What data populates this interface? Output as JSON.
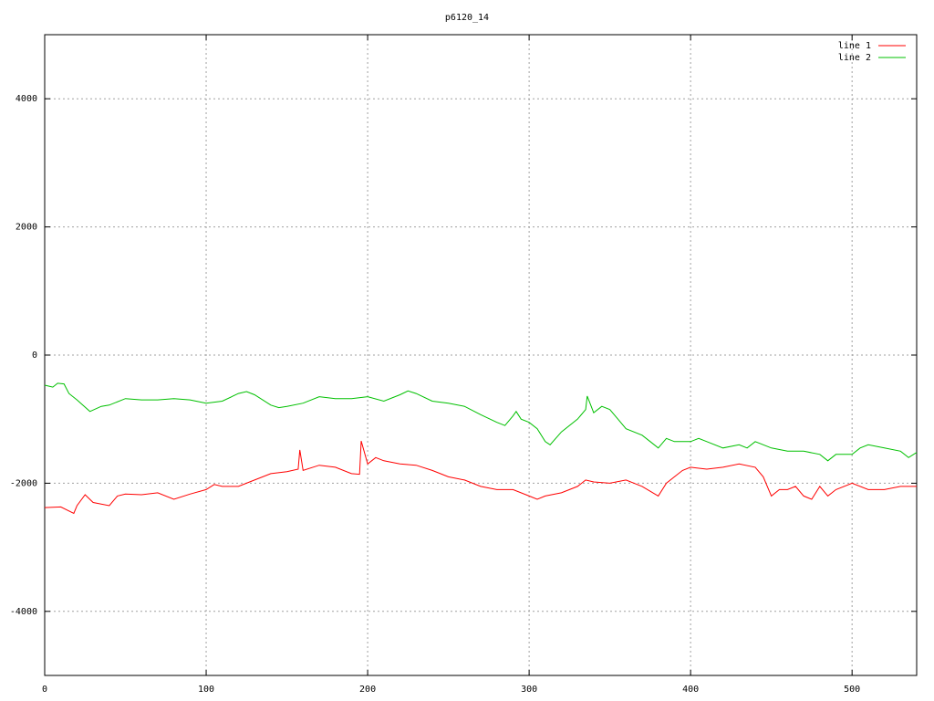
{
  "chart_data": {
    "type": "line",
    "title": "p6120_14",
    "xlim": [
      0,
      540
    ],
    "ylim": [
      -5000,
      5000
    ],
    "xticks": [
      0,
      100,
      200,
      300,
      400,
      500
    ],
    "yticks": [
      -4000,
      -2000,
      0,
      2000,
      4000
    ],
    "grid": true,
    "legend": "top-right",
    "series": [
      {
        "name": "line 1",
        "color": "#ff0000",
        "x": [
          0,
          10,
          18,
          20,
          25,
          30,
          40,
          45,
          50,
          60,
          70,
          80,
          90,
          100,
          105,
          110,
          120,
          130,
          140,
          150,
          157,
          158,
          160,
          170,
          180,
          190,
          195,
          196,
          200,
          205,
          210,
          220,
          230,
          240,
          250,
          260,
          270,
          280,
          290,
          300,
          305,
          310,
          320,
          330,
          335,
          340,
          350,
          360,
          370,
          380,
          385,
          390,
          395,
          400,
          410,
          420,
          430,
          440,
          445,
          450,
          455,
          460,
          465,
          470,
          475,
          480,
          485,
          490,
          500,
          510,
          520,
          530,
          540
        ],
        "values": [
          -2380,
          -2370,
          -2470,
          -2350,
          -2180,
          -2300,
          -2350,
          -2200,
          -2170,
          -2180,
          -2150,
          -2250,
          -2170,
          -2100,
          -2020,
          -2050,
          -2050,
          -1950,
          -1850,
          -1820,
          -1780,
          -1480,
          -1800,
          -1720,
          -1750,
          -1850,
          -1860,
          -1340,
          -1700,
          -1600,
          -1650,
          -1700,
          -1720,
          -1800,
          -1900,
          -1950,
          -2050,
          -2100,
          -2100,
          -2200,
          -2250,
          -2200,
          -2150,
          -2050,
          -1950,
          -1980,
          -2000,
          -1950,
          -2050,
          -2200,
          -2000,
          -1900,
          -1800,
          -1750,
          -1780,
          -1750,
          -1700,
          -1750,
          -1900,
          -2200,
          -2100,
          -2100,
          -2050,
          -2200,
          -2250,
          -2050,
          -2200,
          -2100,
          -2000,
          -2100,
          -2100,
          -2050,
          -2050
        ]
      },
      {
        "name": "line 2",
        "color": "#00c000",
        "x": [
          0,
          5,
          8,
          12,
          15,
          20,
          28,
          35,
          40,
          50,
          60,
          70,
          80,
          90,
          100,
          110,
          120,
          125,
          130,
          140,
          145,
          150,
          160,
          170,
          180,
          190,
          200,
          210,
          220,
          225,
          230,
          240,
          250,
          260,
          270,
          280,
          285,
          290,
          292,
          295,
          300,
          305,
          310,
          313,
          320,
          330,
          335,
          336,
          340,
          345,
          350,
          355,
          360,
          370,
          375,
          380,
          385,
          390,
          400,
          405,
          410,
          420,
          430,
          435,
          440,
          450,
          460,
          470,
          480,
          485,
          490,
          500,
          505,
          510,
          520,
          530,
          535,
          540
        ],
        "values": [
          -470,
          -500,
          -440,
          -450,
          -600,
          -700,
          -880,
          -800,
          -780,
          -680,
          -700,
          -700,
          -680,
          -700,
          -750,
          -720,
          -600,
          -570,
          -620,
          -780,
          -820,
          -800,
          -750,
          -650,
          -680,
          -680,
          -650,
          -720,
          -620,
          -560,
          -600,
          -720,
          -750,
          -800,
          -930,
          -1050,
          -1100,
          -950,
          -880,
          -1000,
          -1050,
          -1150,
          -1350,
          -1400,
          -1200,
          -1000,
          -850,
          -640,
          -900,
          -800,
          -850,
          -1000,
          -1150,
          -1250,
          -1350,
          -1450,
          -1300,
          -1350,
          -1350,
          -1300,
          -1350,
          -1450,
          -1400,
          -1450,
          -1350,
          -1450,
          -1500,
          -1500,
          -1550,
          -1650,
          -1550,
          -1550,
          -1450,
          -1400,
          -1450,
          -1500,
          -1600,
          -1520
        ]
      }
    ]
  }
}
